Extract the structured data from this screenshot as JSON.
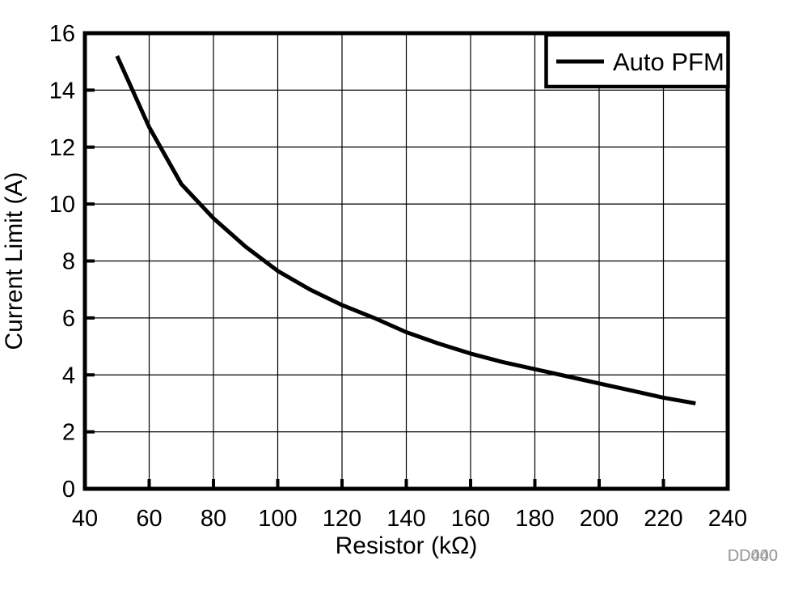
{
  "figure": {
    "watermark": {
      "layers": [
        "DD440",
        "DD000"
      ],
      "color": "#9b9b9b"
    }
  },
  "chart_data": {
    "type": "line",
    "title": "",
    "xlabel": "Resistor (kΩ)",
    "ylabel": "Current Limit (A)",
    "xlim": [
      40,
      240
    ],
    "ylim": [
      0,
      16
    ],
    "xticks": [
      40,
      60,
      80,
      100,
      120,
      140,
      160,
      180,
      200,
      220,
      240
    ],
    "yticks": [
      0,
      2,
      4,
      6,
      8,
      10,
      12,
      14,
      16
    ],
    "grid": true,
    "background": "#ffffff",
    "axis_color": "#000000",
    "grid_color": "#000000",
    "legend": {
      "position": "top-right",
      "entries": [
        {
          "label": "Auto PFM",
          "color": "#000000"
        }
      ]
    },
    "series": [
      {
        "name": "Auto PFM",
        "color": "#000000",
        "x": [
          50,
          60,
          70,
          80,
          90,
          100,
          110,
          120,
          130,
          140,
          150,
          160,
          170,
          180,
          190,
          200,
          210,
          220,
          230
        ],
        "y": [
          15.2,
          12.7,
          10.7,
          9.5,
          8.5,
          7.65,
          7.0,
          6.45,
          6.0,
          5.5,
          5.1,
          4.75,
          4.45,
          4.2,
          3.95,
          3.7,
          3.45,
          3.2,
          3.0
        ]
      }
    ]
  }
}
